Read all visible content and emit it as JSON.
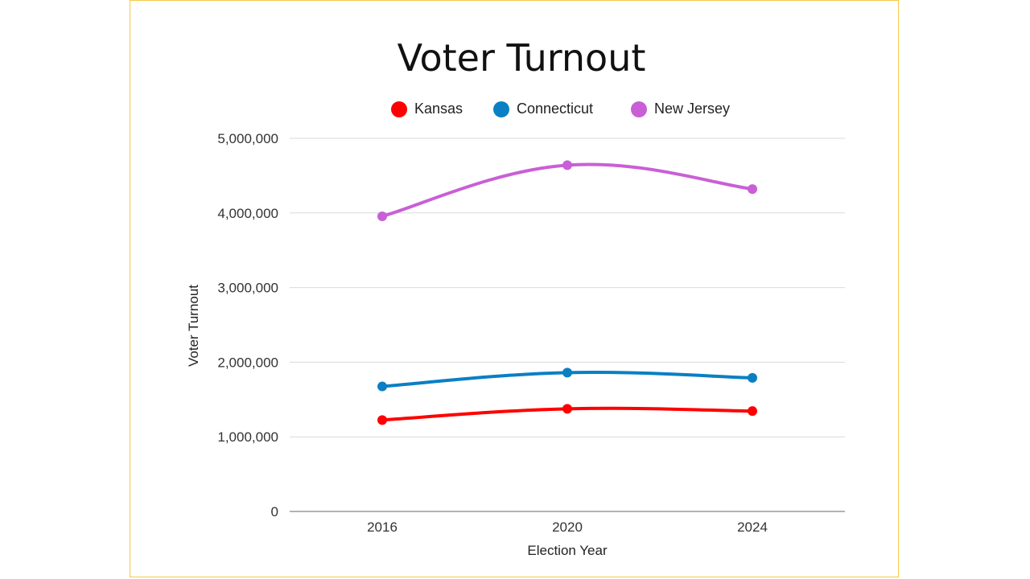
{
  "chart_data": {
    "type": "line",
    "title": "Voter Turnout",
    "xlabel": "Election Year",
    "ylabel": "Voter Turnout",
    "categories": [
      "2016",
      "2020",
      "2024"
    ],
    "y_ticks": [
      "0",
      "1,000,000",
      "2,000,000",
      "3,000,000",
      "4,000,000",
      "5,000,000"
    ],
    "ylim": [
      0,
      5000000
    ],
    "grid": true,
    "legend_position": "top",
    "series": [
      {
        "name": "Kansas",
        "color": "#ff0000",
        "values": [
          1225000,
          1375000,
          1345000
        ]
      },
      {
        "name": "Connecticut",
        "color": "#0a7fc4",
        "values": [
          1675000,
          1860000,
          1790000
        ]
      },
      {
        "name": "New Jersey",
        "color": "#c95fd6",
        "values": [
          3955000,
          4640000,
          4320000
        ]
      }
    ]
  }
}
